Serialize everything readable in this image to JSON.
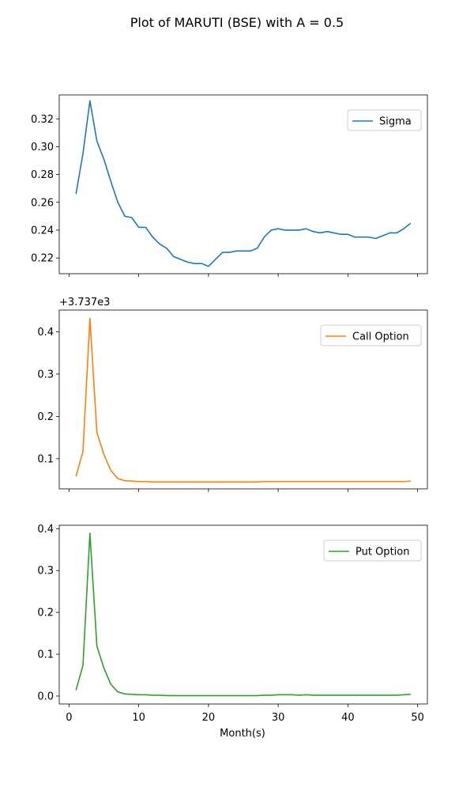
{
  "chart_data": {
    "type": "line",
    "title": "Plot of MARUTI (BSE) with A = 0.5",
    "xlabel": "Month(s)",
    "xlim": [
      -1.4,
      51.4
    ],
    "xticks": [
      0,
      10,
      20,
      30,
      40,
      50
    ],
    "x": [
      1,
      2,
      3,
      4,
      5,
      6,
      7,
      8,
      9,
      10,
      11,
      12,
      13,
      14,
      15,
      16,
      17,
      18,
      19,
      20,
      21,
      22,
      23,
      24,
      25,
      26,
      27,
      28,
      29,
      30,
      31,
      32,
      33,
      34,
      35,
      36,
      37,
      38,
      39,
      40,
      41,
      42,
      43,
      44,
      45,
      46,
      47,
      48,
      49
    ],
    "panels": [
      {
        "series": [
          {
            "name": "Sigma",
            "color": "#1f77b4",
            "values": [
              0.266,
              0.295,
              0.333,
              0.304,
              0.291,
              0.275,
              0.26,
              0.25,
              0.249,
              0.242,
              0.242,
              0.235,
              0.23,
              0.227,
              0.221,
              0.219,
              0.217,
              0.216,
              0.216,
              0.214,
              0.219,
              0.224,
              0.224,
              0.225,
              0.225,
              0.225,
              0.227,
              0.235,
              0.24,
              0.241,
              0.24,
              0.24,
              0.24,
              0.241,
              0.239,
              0.238,
              0.239,
              0.238,
              0.237,
              0.237,
              0.235,
              0.235,
              0.235,
              0.234,
              0.236,
              0.238,
              0.238,
              0.241,
              0.245
            ]
          }
        ],
        "ylim": [
          0.2087,
          0.3372
        ],
        "yticks": [
          "0.22",
          "0.24",
          "0.26",
          "0.28",
          "0.30",
          "0.32"
        ],
        "ytick_values": [
          0.22,
          0.24,
          0.26,
          0.28,
          0.3,
          0.32
        ],
        "offset_text": "",
        "legend": "upper right"
      },
      {
        "series": [
          {
            "name": "Call Option",
            "color": "#ff7f0e",
            "values": [
              0.058,
              0.117,
              0.432,
              0.162,
              0.11,
              0.072,
              0.053,
              0.048,
              0.047,
              0.046,
              0.046,
              0.045,
              0.045,
              0.045,
              0.045,
              0.045,
              0.045,
              0.045,
              0.045,
              0.045,
              0.045,
              0.045,
              0.045,
              0.045,
              0.045,
              0.045,
              0.045,
              0.046,
              0.046,
              0.046,
              0.046,
              0.046,
              0.046,
              0.046,
              0.046,
              0.046,
              0.046,
              0.046,
              0.046,
              0.046,
              0.046,
              0.046,
              0.046,
              0.046,
              0.046,
              0.046,
              0.046,
              0.046,
              0.047
            ]
          }
        ],
        "ylim": [
          0.0287,
          0.4513
        ],
        "yticks": [
          "0.1",
          "0.2",
          "0.3",
          "0.4"
        ],
        "ytick_values": [
          0.1,
          0.2,
          0.3,
          0.4
        ],
        "offset_text": "+3.737e3",
        "legend": "upper right"
      },
      {
        "series": [
          {
            "name": "Put Option",
            "color": "#2ca02c",
            "values": [
              0.014,
              0.073,
              0.389,
              0.119,
              0.067,
              0.028,
              0.01,
              0.005,
              0.004,
              0.003,
              0.003,
              0.002,
              0.002,
              0.001,
              0.001,
              0.001,
              0.001,
              0.001,
              0.001,
              0.001,
              0.001,
              0.001,
              0.001,
              0.001,
              0.001,
              0.001,
              0.001,
              0.002,
              0.002,
              0.003,
              0.003,
              0.003,
              0.002,
              0.003,
              0.002,
              0.002,
              0.002,
              0.002,
              0.002,
              0.002,
              0.002,
              0.002,
              0.002,
              0.002,
              0.002,
              0.002,
              0.002,
              0.003,
              0.004
            ]
          }
        ],
        "ylim": [
          -0.019,
          0.4082
        ],
        "yticks": [
          "0.0",
          "0.1",
          "0.2",
          "0.3",
          "0.4"
        ],
        "ytick_values": [
          0.0,
          0.1,
          0.2,
          0.3,
          0.4
        ],
        "offset_text": "",
        "legend": "upper right"
      }
    ]
  }
}
